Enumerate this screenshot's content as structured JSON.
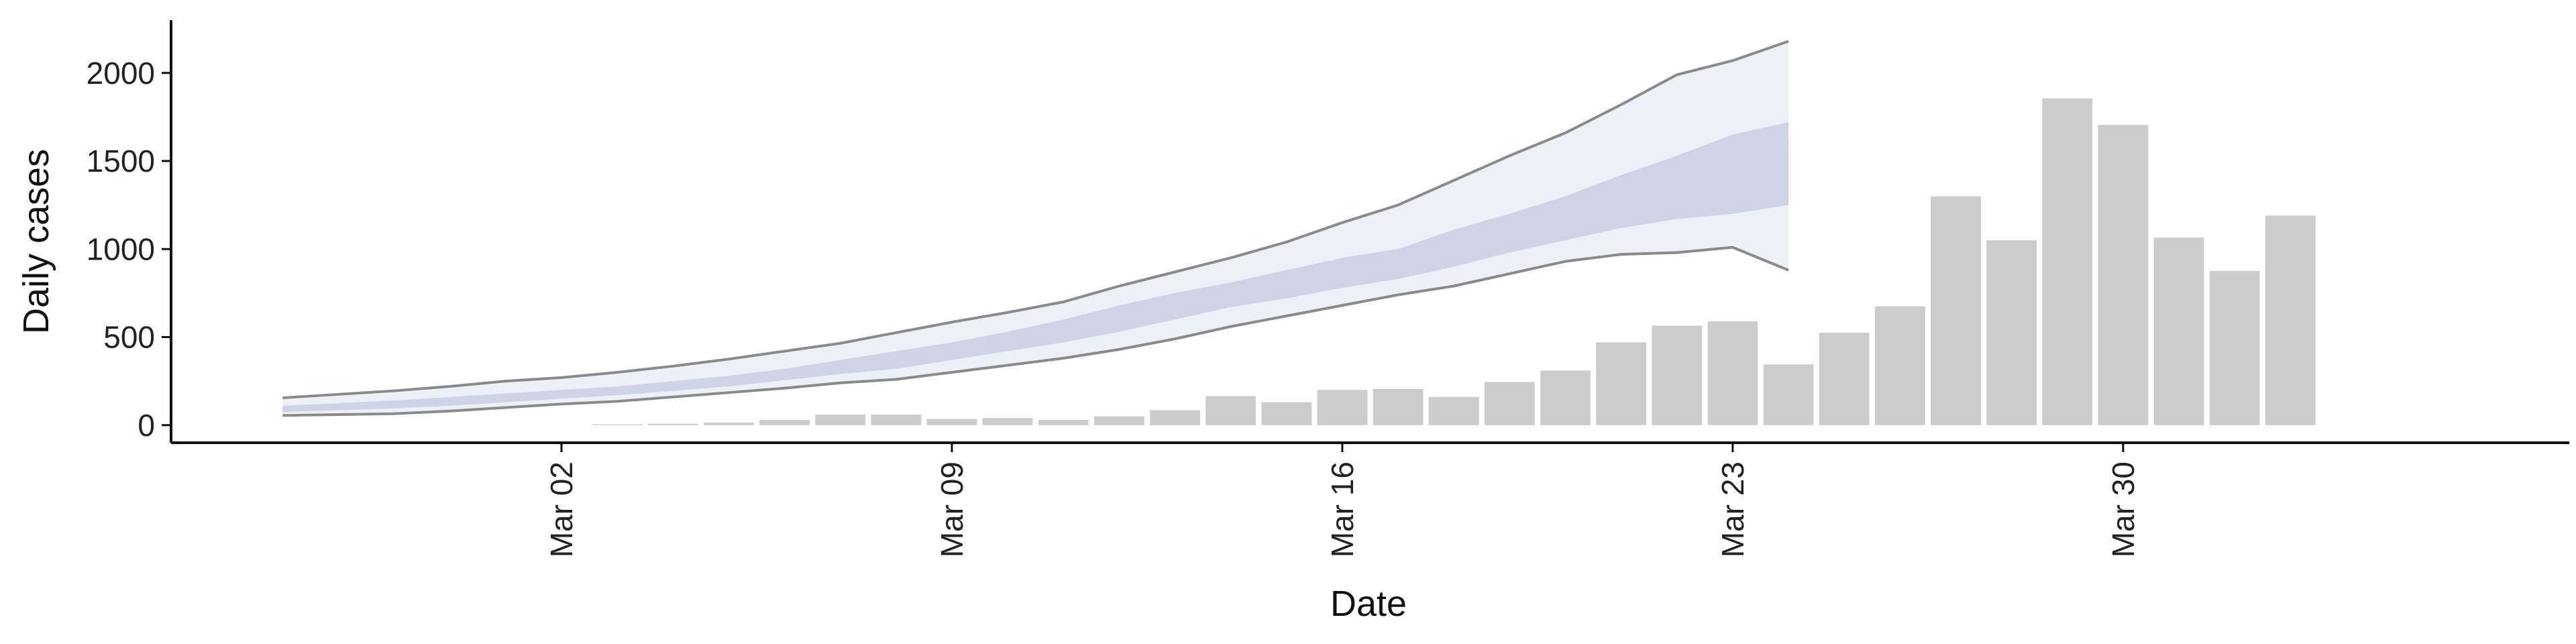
{
  "chart_data": {
    "type": "bar",
    "title": "",
    "xlabel": "Date",
    "ylabel": "Daily cases",
    "ylim": [
      -100,
      2300
    ],
    "y_ticks": [
      0,
      500,
      1000,
      1500,
      2000
    ],
    "x_ticks": [
      {
        "date": "2020-03-02",
        "label": "Mar 02"
      },
      {
        "date": "2020-03-09",
        "label": "Mar 09"
      },
      {
        "date": "2020-03-16",
        "label": "Mar 16"
      },
      {
        "date": "2020-03-23",
        "label": "Mar 23"
      },
      {
        "date": "2020-03-30",
        "label": "Mar 30"
      }
    ],
    "xlim": [
      "2020-02-24",
      "2020-04-07"
    ],
    "grid": false,
    "colors": {
      "bars": "#cccccc",
      "band_outer": "#eef0f7",
      "band_inner": "#c6cce1",
      "band_line": "#8a8a8a"
    },
    "bars": {
      "dates": [
        "2020-03-03",
        "2020-03-04",
        "2020-03-05",
        "2020-03-06",
        "2020-03-07",
        "2020-03-08",
        "2020-03-09",
        "2020-03-10",
        "2020-03-11",
        "2020-03-12",
        "2020-03-13",
        "2020-03-14",
        "2020-03-15",
        "2020-03-16",
        "2020-03-17",
        "2020-03-18",
        "2020-03-19",
        "2020-03-20",
        "2020-03-21",
        "2020-03-22",
        "2020-03-23",
        "2020-03-24",
        "2020-03-25",
        "2020-03-26",
        "2020-03-27",
        "2020-03-28",
        "2020-03-29",
        "2020-03-30",
        "2020-03-31",
        "2020-04-01",
        "2020-04-02"
      ],
      "values": [
        5,
        8,
        15,
        30,
        60,
        60,
        35,
        40,
        30,
        50,
        85,
        165,
        130,
        200,
        205,
        160,
        245,
        310,
        470,
        565,
        590,
        345,
        525,
        675,
        1300,
        1050,
        1855,
        1705,
        1065,
        875,
        1190
      ]
    },
    "forecast": {
      "dates": [
        "2020-02-26",
        "2020-02-27",
        "2020-02-28",
        "2020-02-29",
        "2020-03-01",
        "2020-03-02",
        "2020-03-03",
        "2020-03-04",
        "2020-03-05",
        "2020-03-06",
        "2020-03-07",
        "2020-03-08",
        "2020-03-09",
        "2020-03-10",
        "2020-03-11",
        "2020-03-12",
        "2020-03-13",
        "2020-03-14",
        "2020-03-15",
        "2020-03-16",
        "2020-03-17",
        "2020-03-18",
        "2020-03-19",
        "2020-03-20",
        "2020-03-21",
        "2020-03-22",
        "2020-03-23",
        "2020-03-24"
      ],
      "outer_upper": [
        155,
        175,
        195,
        220,
        250,
        270,
        300,
        335,
        375,
        420,
        465,
        525,
        585,
        640,
        700,
        790,
        870,
        950,
        1040,
        1150,
        1250,
        1390,
        1530,
        1660,
        1820,
        1990,
        2070,
        2180
      ],
      "inner_upper": [
        110,
        125,
        140,
        160,
        180,
        200,
        220,
        250,
        280,
        320,
        370,
        420,
        470,
        530,
        600,
        680,
        750,
        810,
        880,
        950,
        1000,
        1110,
        1200,
        1300,
        1420,
        1530,
        1650,
        1720
      ],
      "inner_lower": [
        75,
        85,
        95,
        110,
        130,
        150,
        170,
        195,
        220,
        255,
        290,
        320,
        370,
        420,
        470,
        530,
        600,
        670,
        720,
        780,
        830,
        900,
        980,
        1050,
        1120,
        1170,
        1200,
        1250
      ],
      "outer_lower": [
        55,
        60,
        65,
        80,
        100,
        120,
        135,
        160,
        185,
        210,
        240,
        260,
        300,
        340,
        380,
        430,
        490,
        560,
        620,
        680,
        740,
        790,
        860,
        930,
        970,
        980,
        1010,
        880
      ]
    }
  }
}
